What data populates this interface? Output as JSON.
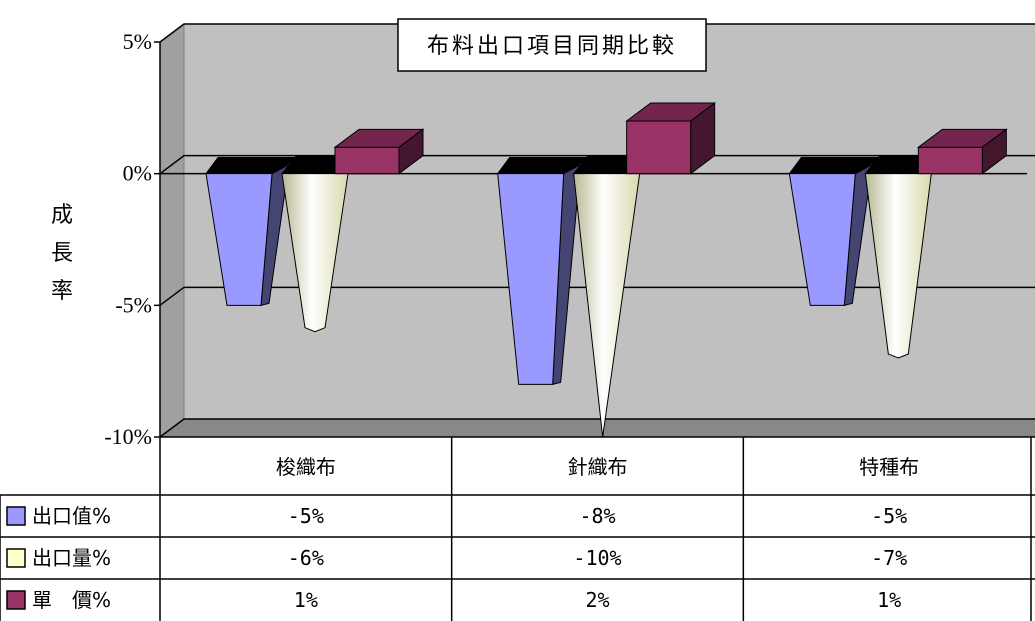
{
  "chart_data": {
    "type": "bar",
    "title": "布料出口項目同期比較",
    "ylabel": "成長率",
    "categories": [
      "梭織布",
      "針織布",
      "特種布"
    ],
    "yticks": [
      "5%",
      "0%",
      "-5%",
      "-10%"
    ],
    "ylim": [
      -10,
      5
    ],
    "grid": true,
    "legend": "data-table",
    "series": [
      {
        "name": "出口值%",
        "values": [
          -5,
          -8,
          -5
        ],
        "labels": [
          "-5%",
          "-8%",
          "-5%"
        ],
        "color": "#9999ff"
      },
      {
        "name": "出口量%",
        "values": [
          -6,
          -10,
          -7
        ],
        "labels": [
          "-6%",
          "-10%",
          "-7%"
        ],
        "color": "#ffffcc"
      },
      {
        "name": "單　價%",
        "values": [
          1,
          2,
          1
        ],
        "labels": [
          "1%",
          "2%",
          "1%"
        ],
        "color": "#993366"
      }
    ]
  }
}
